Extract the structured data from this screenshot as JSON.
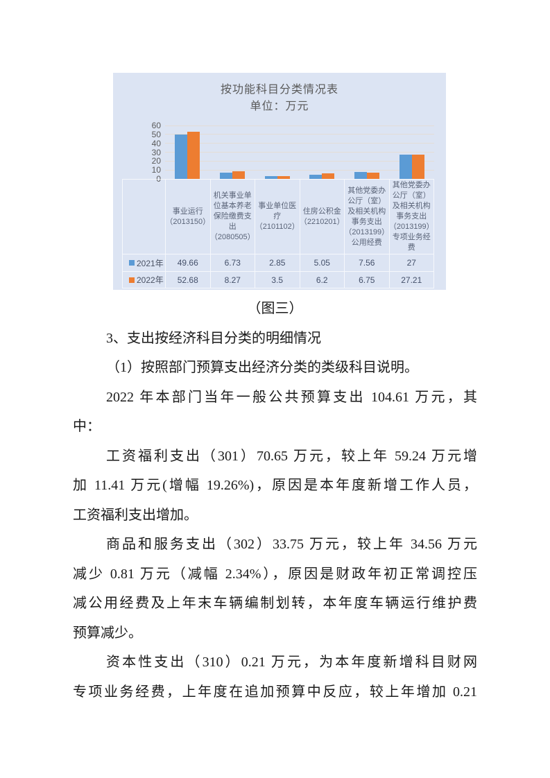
{
  "document": {
    "figure_caption": "（图三）",
    "headings": [
      "3、支出按经济科目分类的明细情况",
      "（1）按照部门预算支出经济分类的类级科目说明。"
    ],
    "paragraphs": [
      {
        "continues": false,
        "lines": [
          "2022 年本部门当年一般公共预算支出 104.61 万元，其",
          "中："
        ]
      },
      {
        "continues": false,
        "lines": [
          "工资福利支出（301）70.65 万元，较上年 59.24 万元增",
          "加 11.41 万元(增幅 19.26%)，原因是本年度新增工作人员，",
          "工资福利支出增加。"
        ]
      },
      {
        "continues": false,
        "lines": [
          "商品和服务支出（302）33.75 万元，较上年 34.56 万元",
          "减少 0.81 万元（减幅 2.34%），原因是财政年初正常调控压",
          "减公用经费及上年末车辆编制划转，本年度车辆运行维护费",
          "预算减少。"
        ]
      },
      {
        "continues": true,
        "lines": [
          "资本性支出（310）0.21 万元，为本年度新增科目财网",
          "专项业务经费，上年度在追加预算中反应，较上年增加 0.21"
        ]
      }
    ]
  },
  "chart_data": {
    "type": "bar",
    "title": "按功能科目分类情况表",
    "subtitle": "单位：万元",
    "categories": [
      "事业运行（2013150）",
      "机关事业单位基本养老保险缴费支出（2080505）",
      "事业单位医疗（2101102）",
      "住房公积金（2210201）",
      "其他党委办公厅（室）及相关机构事务支出（2013199）公用经费",
      "其他党委办公厅（室）及相关机构事务支出（2013199）专项业务经费"
    ],
    "series": [
      {
        "name": "2021年",
        "color": "#5b9bd5",
        "values": [
          49.66,
          6.73,
          2.85,
          5.05,
          7.56,
          27
        ]
      },
      {
        "name": "2022年",
        "color": "#ed7d31",
        "values": [
          52.68,
          8.27,
          3.5,
          6.2,
          6.75,
          27.21
        ]
      }
    ],
    "ylim": [
      0,
      60
    ],
    "yticks": [
      0,
      10,
      20,
      30,
      40,
      50,
      60
    ],
    "grid": true,
    "legend_position": "table-left",
    "background": "#dce4f3"
  }
}
